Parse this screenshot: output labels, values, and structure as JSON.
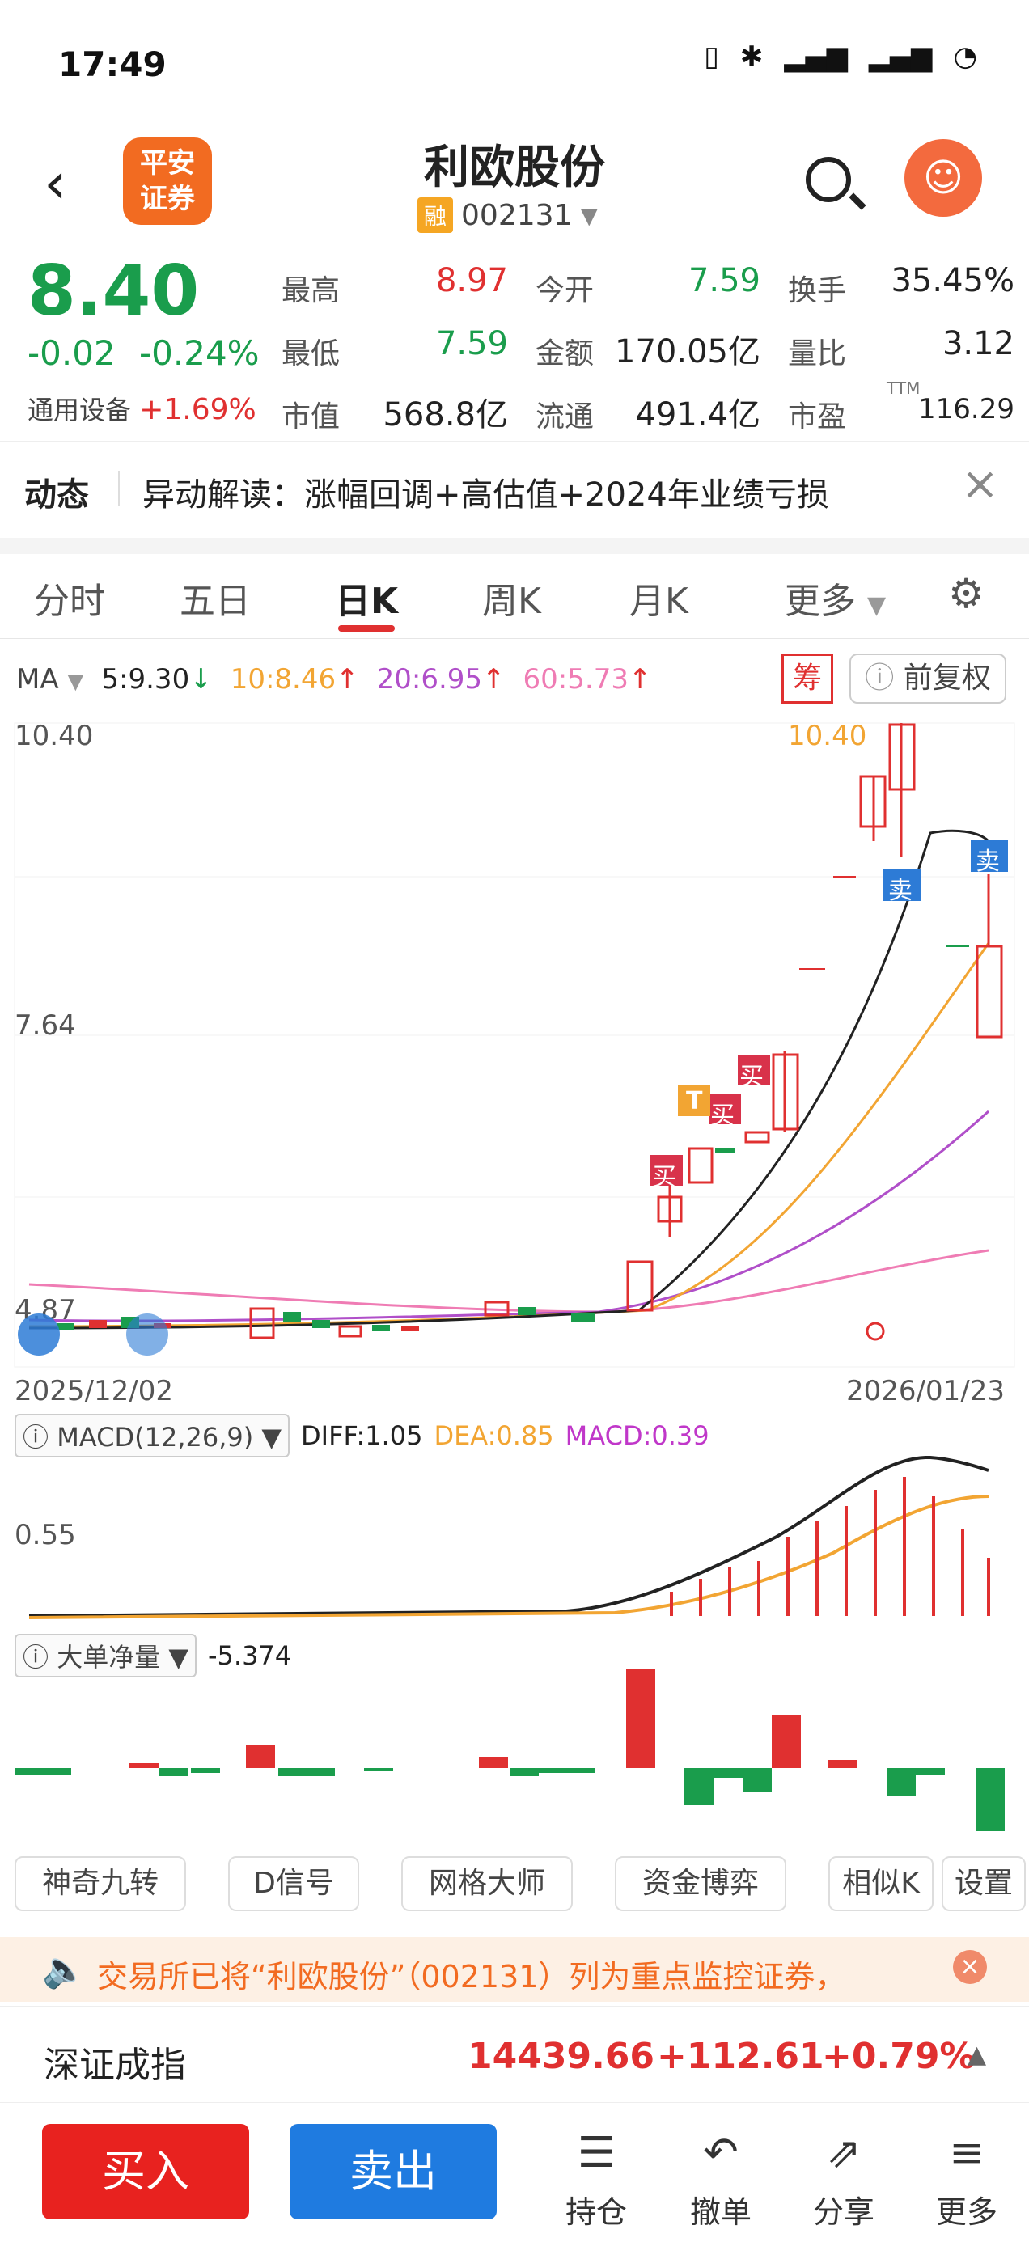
{
  "status_bar": {
    "time": "17:49",
    "icons": [
      "vibrate-icon",
      "bluetooth-icon",
      "5g-signal-icon",
      "5g-signal-icon",
      "battery-icon"
    ]
  },
  "header": {
    "logo_text": "平安证券",
    "stock_name": "利欧股份",
    "rong_badge": "融",
    "stock_code": "002131"
  },
  "quote": {
    "price": "8.40",
    "change": "-0.02",
    "change_pct": "-0.24%",
    "sector_name": "通用设备",
    "sector_change": "+1.69%",
    "fields": [
      {
        "label": "最高",
        "value": "8.97"
      },
      {
        "label": "今开",
        "value": "7.59"
      },
      {
        "label": "换手",
        "value": "35.45%"
      },
      {
        "label": "最低",
        "value": "7.59"
      },
      {
        "label": "金额",
        "value": "170.05亿"
      },
      {
        "label": "量比",
        "value": "3.12"
      },
      {
        "label": "市值",
        "value": "568.8亿"
      },
      {
        "label": "流通",
        "value": "491.4亿"
      },
      {
        "label": "市盈",
        "value": "116.29"
      }
    ],
    "pe_sup": "TTM"
  },
  "news": {
    "label": "动态",
    "text": "异动解读：涨幅回调+高估值+2024年业绩亏损"
  },
  "tabs": [
    "分时",
    "五日",
    "日K",
    "周K",
    "月K",
    "更多"
  ],
  "ma_row": {
    "label": "MA",
    "ma5": "5:9.30",
    "ma10": "10:8.46",
    "ma20": "20:6.95",
    "ma60": "60:5.73",
    "chou": "筹",
    "fuquan": "前复权"
  },
  "chart_labels": {
    "y_top": "10.40",
    "y_mid": "7.64",
    "y_low": "4.87",
    "high_mark": "10.40",
    "date_start": "2025/12/02",
    "date_end": "2026/01/23",
    "buy": "买",
    "sell": "卖",
    "t": "T"
  },
  "chart_data": {
    "type": "candlestick",
    "x": [
      "2025/12/02",
      "2026/01/23"
    ],
    "ylim": [
      4.87,
      10.4
    ],
    "ma": {
      "ma5": 9.3,
      "ma10": 8.46,
      "ma20": 6.95,
      "ma60": 5.73
    },
    "last_candle": {
      "open": 7.59,
      "high": 8.97,
      "low": 7.59,
      "close": 8.4
    }
  },
  "macd": {
    "label": "MACD(12,26,9)",
    "diff": "DIFF:1.05",
    "dea": "DEA:0.85",
    "macd": "MACD:0.39",
    "y_label": "0.55"
  },
  "big_order": {
    "label": "大单净量",
    "value": "-5.374"
  },
  "tools": [
    "神奇九转",
    "D信号",
    "网格大师",
    "资金博弈",
    "相似K",
    "设置"
  ],
  "notice": {
    "text": "交易所已将“利欧股份”（002131）列为重点监控证券，"
  },
  "index": {
    "name": "深证成指",
    "value": "14439.66",
    "change": "+112.61",
    "pct": "+0.79%"
  },
  "bottom_bar": {
    "buy": "买入",
    "sell": "卖出",
    "items": [
      "持仓",
      "撤单",
      "分享",
      "更多"
    ]
  },
  "colors": {
    "up": "#e03030",
    "down": "#1a9d4c",
    "ma5": "#222222",
    "ma10": "#f2a533",
    "ma20": "#b04fc9",
    "ma60": "#ef7cb4"
  }
}
